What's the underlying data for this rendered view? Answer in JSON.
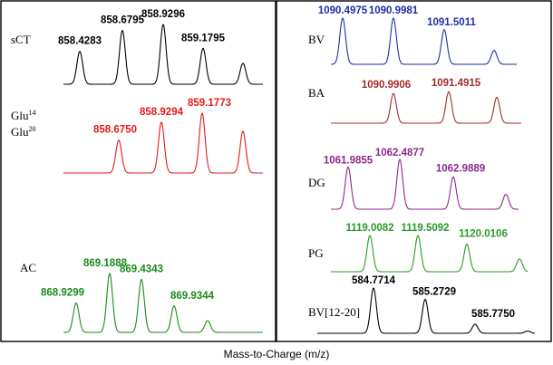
{
  "chart_data": [
    {
      "type": "line",
      "panel": "left",
      "spectra": [
        {
          "label": "sCT",
          "color": "#000000",
          "peaks": [
            {
              "mz": 858.4283,
              "label": "858.4283",
              "rel": 0.55
            },
            {
              "mz": 858.6795,
              "label": "858.6795",
              "rel": 0.9
            },
            {
              "mz": 858.9296,
              "label": "858.9296",
              "rel": 1.0
            },
            {
              "mz": 859.1795,
              "label": "859.1795",
              "rel": 0.6
            },
            {
              "mz": 859.43,
              "label": "",
              "rel": 0.35
            }
          ]
        },
        {
          "label": "Glu14 Glu20",
          "label_line1": "Glu",
          "sup1": "14",
          "label_line2": "Glu",
          "sup2": "20",
          "color": "#e41a1c",
          "peaks": [
            {
              "mz": 858.675,
              "label": "858.6750",
              "rel": 0.55
            },
            {
              "mz": 858.9294,
              "label": "858.9294",
              "rel": 0.85
            },
            {
              "mz": 859.1773,
              "label": "859.1773",
              "rel": 1.0
            },
            {
              "mz": 859.43,
              "label": "",
              "rel": 0.7
            }
          ]
        },
        {
          "label": "AC",
          "color": "#1b8a1b",
          "peaks": [
            {
              "mz": 868.9299,
              "label": "868.9299",
              "rel": 0.5
            },
            {
              "mz": 869.1888,
              "label": "869.1888",
              "rel": 1.0
            },
            {
              "mz": 869.4343,
              "label": "869.4343",
              "rel": 0.9
            },
            {
              "mz": 869.9344,
              "label": "869.9344",
              "rel": 0.45
            },
            {
              "mz": 870.18,
              "label": "",
              "rel": 0.2
            }
          ]
        }
      ]
    },
    {
      "type": "line",
      "panel": "right",
      "spectra": [
        {
          "label": "BV",
          "color": "#1f2fa8",
          "peaks": [
            {
              "mz": 1090.4975,
              "label": "1090.4975",
              "rel": 1.0
            },
            {
              "mz": 1090.9981,
              "label": "1090.9981",
              "rel": 1.0
            },
            {
              "mz": 1091.5011,
              "label": "1091.5011",
              "rel": 0.75
            },
            {
              "mz": 1092.0,
              "label": "",
              "rel": 0.3
            }
          ]
        },
        {
          "label": "BA",
          "color": "#a52a2a",
          "peaks": [
            {
              "mz": 1090.9906,
              "label": "1090.9906",
              "rel": 0.8
            },
            {
              "mz": 1091.4915,
              "label": "1091.4915",
              "rel": 0.85
            },
            {
              "mz": 1091.99,
              "label": "",
              "rel": 0.7
            }
          ]
        },
        {
          "label": "DG",
          "color": "#8b2a8b",
          "peaks": [
            {
              "mz": 1061.9855,
              "label": "1061.9855",
              "rel": 0.85
            },
            {
              "mz": 1062.4877,
              "label": "1062.4877",
              "rel": 1.0
            },
            {
              "mz": 1062.9889,
              "label": "1062.9889",
              "rel": 0.65
            },
            {
              "mz": 1063.49,
              "label": "",
              "rel": 0.3
            }
          ]
        },
        {
          "label": "PG",
          "color": "#2a9a2a",
          "peaks": [
            {
              "mz": 1119.0082,
              "label": "1119.0082",
              "rel": 0.85
            },
            {
              "mz": 1119.5092,
              "label": "1119.5092",
              "rel": 0.85
            },
            {
              "mz": 1120.0106,
              "label": "1120.0106",
              "rel": 0.65
            },
            {
              "mz": 1120.51,
              "label": "",
              "rel": 0.3
            }
          ]
        },
        {
          "label": "BV[12-20]",
          "color": "#000000",
          "peaks": [
            {
              "mz": 584.7714,
              "label": "584.7714",
              "rel": 1.0
            },
            {
              "mz": 585.2729,
              "label": "585.2729",
              "rel": 0.75
            },
            {
              "mz": 585.775,
              "label": "585.7750",
              "rel": 0.2
            },
            {
              "mz": 586.27,
              "label": "",
              "rel": 0.05
            }
          ]
        }
      ]
    }
  ],
  "xlabel": "Mass-to-Charge (m/z)"
}
